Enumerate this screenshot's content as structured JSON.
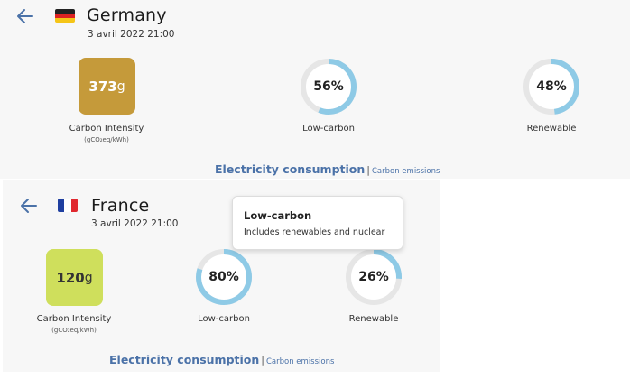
{
  "panels": [
    {
      "country": "Germany",
      "datetime": "3 avril 2022 21:00",
      "carbon_intensity": {
        "value": "373",
        "unit": "g",
        "label": "Carbon Intensity",
        "unit_label": "(gCO₂eq/kWh)",
        "color": "#c59a3a"
      },
      "low_carbon": {
        "percent": 56,
        "display": "56%",
        "label": "Low-carbon"
      },
      "renewable": {
        "percent": 48,
        "display": "48%",
        "label": "Renewable"
      },
      "tabs": {
        "main": "Electricity consumption",
        "separator": "|",
        "secondary": "Carbon emissions"
      }
    },
    {
      "country": "France",
      "datetime": "3 avril 2022 21:00",
      "carbon_intensity": {
        "value": "120",
        "unit": "g",
        "label": "Carbon Intensity",
        "unit_label": "(gCO₂eq/kWh)",
        "color": "#cfdf5c"
      },
      "low_carbon": {
        "percent": 80,
        "display": "80%",
        "label": "Low-carbon"
      },
      "renewable": {
        "percent": 26,
        "display": "26%",
        "label": "Renewable"
      },
      "tabs": {
        "main": "Electricity consumption",
        "separator": "|",
        "secondary": "Carbon emissions"
      }
    }
  ],
  "tooltip": {
    "title": "Low-carbon",
    "text": "Includes renewables and nuclear"
  },
  "colors": {
    "ring_fill": "#8ecae6",
    "ring_track": "#e6e6e6",
    "link": "#4b72a8",
    "back_arrow": "#4b72a8"
  },
  "icons": {
    "back": "arrow-left-icon",
    "flag_germany": "germany-flag-icon",
    "flag_france": "france-flag-icon"
  }
}
